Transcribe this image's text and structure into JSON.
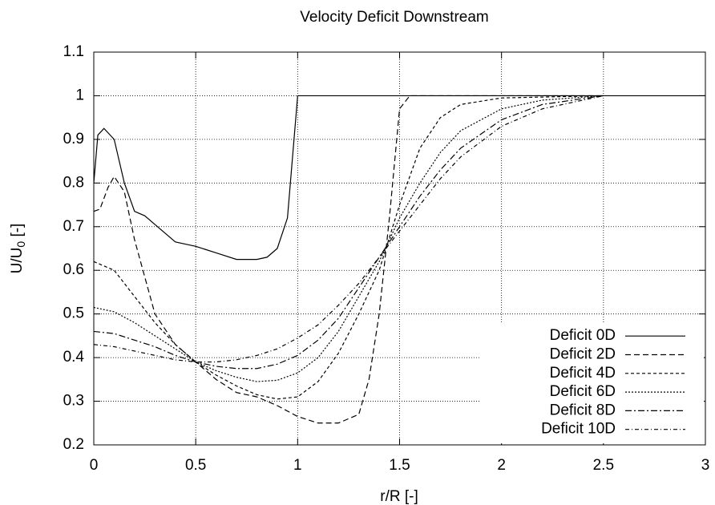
{
  "chart_data": {
    "type": "line",
    "title": "Velocity Deficit Downstream",
    "xlabel": "r/R [-]",
    "ylabel": [
      "U/U",
      "0",
      " [-]"
    ],
    "xlim": [
      0,
      3
    ],
    "xticks": [
      0,
      0.5,
      1,
      1.5,
      2,
      2.5,
      3
    ],
    "ylim": [
      0.2,
      1.1
    ],
    "yticks": [
      0.2,
      0.3,
      0.4,
      0.5,
      0.6,
      0.7,
      0.8,
      0.9,
      1,
      1.1
    ],
    "grid": true,
    "legend": "lower right",
    "series": [
      {
        "name": "Deficit 0D",
        "color": "#000000",
        "dash": "none",
        "x": [
          0,
          0.02,
          0.05,
          0.1,
          0.15,
          0.2,
          0.25,
          0.3,
          0.4,
          0.5,
          0.6,
          0.7,
          0.8,
          0.85,
          0.9,
          0.95,
          1.0,
          3
        ],
        "values": [
          0.8,
          0.91,
          0.925,
          0.9,
          0.8,
          0.735,
          0.725,
          0.705,
          0.665,
          0.655,
          0.64,
          0.625,
          0.625,
          0.63,
          0.65,
          0.72,
          1.0,
          1.0
        ]
      },
      {
        "name": "Deficit 2D",
        "color": "#000000",
        "dash": "7 4",
        "x": [
          0,
          0.03,
          0.07,
          0.1,
          0.15,
          0.2,
          0.3,
          0.4,
          0.5,
          0.6,
          0.7,
          0.8,
          0.9,
          1.0,
          1.1,
          1.2,
          1.3,
          1.35,
          1.4,
          1.45,
          1.5,
          1.55,
          2.5
        ],
        "values": [
          0.735,
          0.74,
          0.79,
          0.815,
          0.78,
          0.67,
          0.5,
          0.43,
          0.39,
          0.35,
          0.32,
          0.31,
          0.29,
          0.265,
          0.25,
          0.25,
          0.27,
          0.35,
          0.5,
          0.72,
          0.97,
          1.0,
          1.0
        ]
      },
      {
        "name": "Deficit 4D",
        "color": "#000000",
        "dash": "4 3",
        "x": [
          0,
          0.1,
          0.2,
          0.3,
          0.4,
          0.5,
          0.6,
          0.7,
          0.8,
          0.9,
          1.0,
          1.1,
          1.2,
          1.3,
          1.4,
          1.5,
          1.6,
          1.7,
          1.8,
          2,
          2.5
        ],
        "values": [
          0.62,
          0.6,
          0.54,
          0.48,
          0.43,
          0.39,
          0.36,
          0.335,
          0.315,
          0.305,
          0.31,
          0.345,
          0.41,
          0.5,
          0.6,
          0.75,
          0.88,
          0.95,
          0.98,
          0.995,
          1.0
        ]
      },
      {
        "name": "Deficit 6D",
        "color": "#000000",
        "dash": "2 2",
        "x": [
          0,
          0.1,
          0.2,
          0.3,
          0.4,
          0.5,
          0.6,
          0.7,
          0.8,
          0.9,
          1.0,
          1.1,
          1.2,
          1.3,
          1.4,
          1.5,
          1.6,
          1.7,
          1.8,
          2,
          2.2,
          2.5
        ],
        "values": [
          0.515,
          0.505,
          0.48,
          0.45,
          0.42,
          0.39,
          0.37,
          0.355,
          0.345,
          0.348,
          0.365,
          0.4,
          0.46,
          0.54,
          0.62,
          0.72,
          0.8,
          0.87,
          0.92,
          0.97,
          0.99,
          1.0
        ]
      },
      {
        "name": "Deficit 8D",
        "color": "#000000",
        "dash": "8 3 2 3",
        "x": [
          0,
          0.1,
          0.2,
          0.3,
          0.4,
          0.5,
          0.6,
          0.7,
          0.8,
          0.9,
          1.0,
          1.1,
          1.2,
          1.3,
          1.4,
          1.5,
          1.6,
          1.7,
          1.8,
          2,
          2.2,
          2.5
        ],
        "values": [
          0.46,
          0.455,
          0.44,
          0.425,
          0.405,
          0.39,
          0.38,
          0.375,
          0.375,
          0.385,
          0.405,
          0.44,
          0.49,
          0.56,
          0.63,
          0.7,
          0.77,
          0.83,
          0.88,
          0.945,
          0.98,
          1.0
        ]
      },
      {
        "name": "Deficit 10D",
        "color": "#000000",
        "dash": "5 3 1 3",
        "x": [
          0,
          0.1,
          0.2,
          0.3,
          0.4,
          0.5,
          0.6,
          0.7,
          0.8,
          0.9,
          1.0,
          1.1,
          1.2,
          1.3,
          1.4,
          1.5,
          1.6,
          1.7,
          1.8,
          2,
          2.2,
          2.5
        ],
        "values": [
          0.43,
          0.425,
          0.415,
          0.405,
          0.395,
          0.39,
          0.39,
          0.395,
          0.405,
          0.42,
          0.445,
          0.475,
          0.52,
          0.57,
          0.63,
          0.69,
          0.75,
          0.81,
          0.86,
          0.93,
          0.97,
          1.0
        ]
      }
    ]
  }
}
